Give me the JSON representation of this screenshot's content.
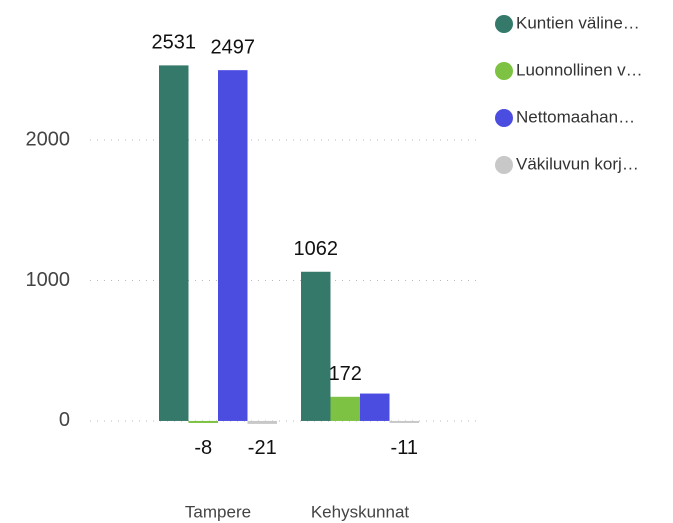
{
  "chart_data": {
    "type": "bar",
    "categories": [
      "Tampere",
      "Kehyskunnat"
    ],
    "series": [
      {
        "name": "Kuntien väline…",
        "color": "#35796b",
        "values": [
          2531,
          1062
        ]
      },
      {
        "name": "Luonnollinen v…",
        "color": "#7dc242",
        "values": [
          -8,
          172
        ]
      },
      {
        "name": "Nettomaahan…",
        "color": "#4b4de0",
        "values": [
          2497,
          195
        ],
        "value_labels": [
          "2497",
          null
        ]
      },
      {
        "name": "Väkiluvun korj…",
        "color": "#c8c8c8",
        "values": [
          -21,
          -11
        ]
      }
    ],
    "ylim": [
      -100,
      2800
    ],
    "yticks": [
      0,
      1000,
      2000
    ],
    "grid": true,
    "legend": "right"
  }
}
